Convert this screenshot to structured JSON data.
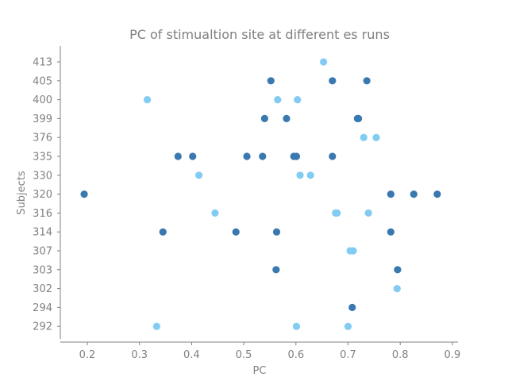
{
  "chart_data": {
    "type": "scatter",
    "title": "PC of stimualtion site at different es runs",
    "xlabel": "PC",
    "ylabel": "Subjects",
    "xlim": [
      0.15,
      0.907
    ],
    "xticks": [
      0.2,
      0.3,
      0.4,
      0.5,
      0.6,
      0.7,
      0.8,
      0.9
    ],
    "xtick_labels": [
      "0.2",
      "0.3",
      "0.4",
      "0.5",
      "0.6",
      "0.7",
      "0.8",
      "0.9"
    ],
    "categories": [
      "292",
      "294",
      "302",
      "303",
      "307",
      "314",
      "316",
      "320",
      "330",
      "335",
      "376",
      "399",
      "400",
      "405",
      "413"
    ],
    "grid": false,
    "colors": {
      "dark": "#3a78b0",
      "light": "#82cbf3",
      "axis": "#808080"
    },
    "points": [
      {
        "subject": "413",
        "x": 0.653,
        "color": "light"
      },
      {
        "subject": "405",
        "x": 0.552,
        "color": "dark"
      },
      {
        "subject": "405",
        "x": 0.67,
        "color": "dark"
      },
      {
        "subject": "405",
        "x": 0.736,
        "color": "dark"
      },
      {
        "subject": "400",
        "x": 0.315,
        "color": "light"
      },
      {
        "subject": "400",
        "x": 0.565,
        "color": "light"
      },
      {
        "subject": "400",
        "x": 0.603,
        "color": "light"
      },
      {
        "subject": "399",
        "x": 0.54,
        "color": "dark"
      },
      {
        "subject": "399",
        "x": 0.582,
        "color": "dark"
      },
      {
        "subject": "399",
        "x": 0.718,
        "color": "dark"
      },
      {
        "subject": "399",
        "x": 0.72,
        "color": "dark"
      },
      {
        "subject": "376",
        "x": 0.73,
        "color": "light"
      },
      {
        "subject": "376",
        "x": 0.754,
        "color": "light"
      },
      {
        "subject": "335",
        "x": 0.374,
        "color": "dark"
      },
      {
        "subject": "335",
        "x": 0.402,
        "color": "dark"
      },
      {
        "subject": "335",
        "x": 0.506,
        "color": "dark"
      },
      {
        "subject": "335",
        "x": 0.536,
        "color": "dark"
      },
      {
        "subject": "335",
        "x": 0.596,
        "color": "dark"
      },
      {
        "subject": "335",
        "x": 0.601,
        "color": "dark"
      },
      {
        "subject": "335",
        "x": 0.67,
        "color": "dark"
      },
      {
        "subject": "330",
        "x": 0.414,
        "color": "light"
      },
      {
        "subject": "330",
        "x": 0.608,
        "color": "light"
      },
      {
        "subject": "330",
        "x": 0.628,
        "color": "light"
      },
      {
        "subject": "320",
        "x": 0.194,
        "color": "dark"
      },
      {
        "subject": "320",
        "x": 0.782,
        "color": "dark"
      },
      {
        "subject": "320",
        "x": 0.826,
        "color": "dark"
      },
      {
        "subject": "320",
        "x": 0.871,
        "color": "dark"
      },
      {
        "subject": "316",
        "x": 0.445,
        "color": "light"
      },
      {
        "subject": "316",
        "x": 0.676,
        "color": "light"
      },
      {
        "subject": "316",
        "x": 0.679,
        "color": "light"
      },
      {
        "subject": "316",
        "x": 0.739,
        "color": "light"
      },
      {
        "subject": "314",
        "x": 0.345,
        "color": "dark"
      },
      {
        "subject": "314",
        "x": 0.485,
        "color": "dark"
      },
      {
        "subject": "314",
        "x": 0.563,
        "color": "dark"
      },
      {
        "subject": "314",
        "x": 0.782,
        "color": "dark"
      },
      {
        "subject": "307",
        "x": 0.704,
        "color": "light"
      },
      {
        "subject": "307",
        "x": 0.71,
        "color": "light"
      },
      {
        "subject": "303",
        "x": 0.562,
        "color": "dark"
      },
      {
        "subject": "303",
        "x": 0.795,
        "color": "dark"
      },
      {
        "subject": "302",
        "x": 0.794,
        "color": "light"
      },
      {
        "subject": "294",
        "x": 0.708,
        "color": "dark"
      },
      {
        "subject": "292",
        "x": 0.333,
        "color": "light"
      },
      {
        "subject": "292",
        "x": 0.601,
        "color": "light"
      },
      {
        "subject": "292",
        "x": 0.7,
        "color": "light"
      }
    ]
  }
}
